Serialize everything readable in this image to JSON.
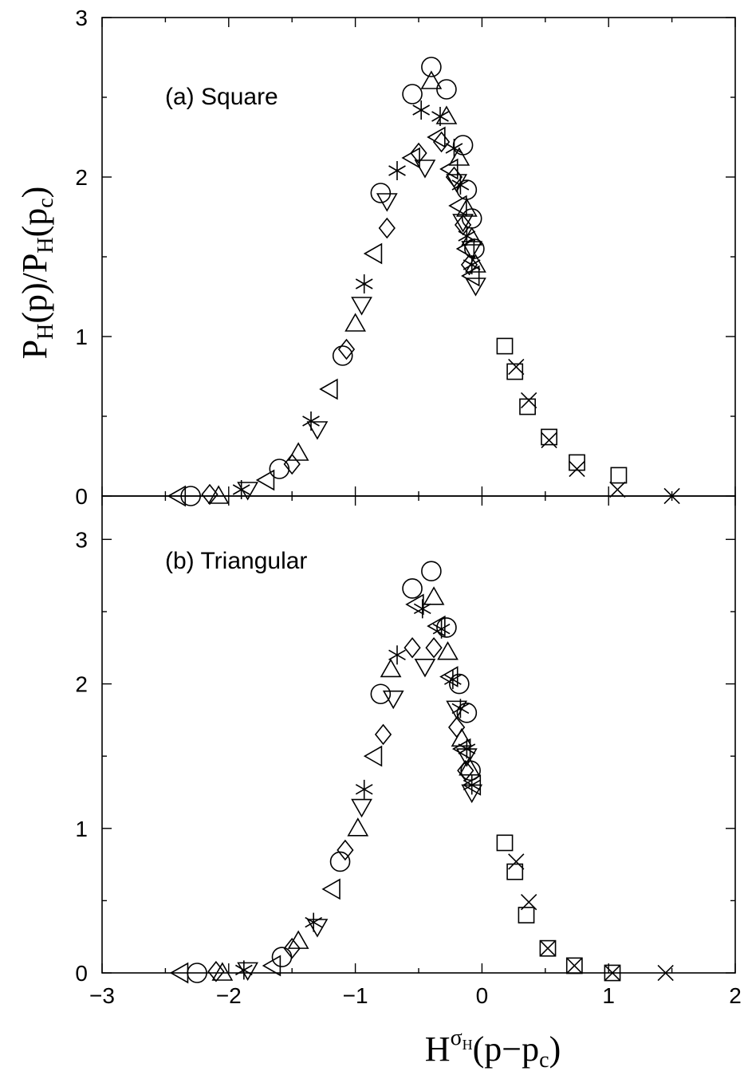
{
  "chart_data": [
    {
      "type": "scatter",
      "panel_label": "(a) Square",
      "xlim": [
        -3,
        2
      ],
      "ylim": [
        0,
        3
      ],
      "y_ticks": [
        0,
        1,
        2,
        3
      ],
      "y_tick_labels": [
        "0",
        "1",
        "2",
        "3"
      ],
      "grid": false,
      "series": [
        {
          "marker": "circle",
          "points": [
            [
              -2.3,
              0.0
            ],
            [
              -1.6,
              0.17
            ],
            [
              -1.1,
              0.88
            ],
            [
              -0.8,
              1.9
            ],
            [
              -0.55,
              2.52
            ],
            [
              -0.4,
              2.69
            ],
            [
              -0.28,
              2.55
            ],
            [
              -0.15,
              2.2
            ],
            [
              -0.12,
              1.92
            ],
            [
              -0.08,
              1.74
            ],
            [
              -0.06,
              1.55
            ]
          ]
        },
        {
          "marker": "triangle-up",
          "points": [
            [
              -2.08,
              0.0
            ],
            [
              -1.45,
              0.27
            ],
            [
              -1.0,
              1.08
            ],
            [
              -0.4,
              2.6
            ],
            [
              -0.28,
              2.38
            ],
            [
              -0.18,
              2.12
            ],
            [
              -0.12,
              1.8
            ],
            [
              -0.08,
              1.62
            ],
            [
              -0.05,
              1.45
            ]
          ]
        },
        {
          "marker": "triangle-down",
          "points": [
            [
              -1.85,
              0.04
            ],
            [
              -1.3,
              0.42
            ],
            [
              -0.95,
              1.2
            ],
            [
              -0.75,
              1.85
            ],
            [
              -0.45,
              2.06
            ],
            [
              -0.2,
              1.97
            ],
            [
              -0.15,
              1.72
            ],
            [
              -0.08,
              1.55
            ],
            [
              -0.05,
              1.32
            ]
          ]
        },
        {
          "marker": "triangle-left",
          "points": [
            [
              -2.4,
              0.0
            ],
            [
              -1.7,
              0.1
            ],
            [
              -1.2,
              0.67
            ],
            [
              -0.85,
              1.52
            ],
            [
              -0.55,
              2.12
            ],
            [
              -0.35,
              2.25
            ],
            [
              -0.25,
              2.05
            ],
            [
              -0.18,
              1.82
            ],
            [
              -0.12,
              1.55
            ],
            [
              -0.08,
              1.38
            ]
          ]
        },
        {
          "marker": "diamond",
          "points": [
            [
              -2.15,
              0.01
            ],
            [
              -1.5,
              0.2
            ],
            [
              -1.07,
              0.92
            ],
            [
              -0.75,
              1.68
            ],
            [
              -0.5,
              2.15
            ],
            [
              -0.32,
              2.22
            ],
            [
              -0.22,
              2.0
            ],
            [
              -0.15,
              1.7
            ],
            [
              -0.1,
              1.45
            ]
          ]
        },
        {
          "marker": "asterisk",
          "points": [
            [
              -1.9,
              0.04
            ],
            [
              -1.35,
              0.47
            ],
            [
              -0.93,
              1.33
            ],
            [
              -0.67,
              2.04
            ],
            [
              -0.48,
              2.42
            ],
            [
              -0.33,
              2.38
            ],
            [
              -0.22,
              2.18
            ],
            [
              -0.17,
              1.95
            ],
            [
              -0.12,
              1.63
            ],
            [
              -0.08,
              1.45
            ]
          ]
        },
        {
          "marker": "square",
          "points": [
            [
              0.18,
              0.94
            ],
            [
              0.26,
              0.78
            ],
            [
              0.36,
              0.56
            ],
            [
              0.53,
              0.37
            ],
            [
              0.75,
              0.21
            ],
            [
              1.08,
              0.13
            ]
          ]
        },
        {
          "marker": "cross",
          "points": [
            [
              0.27,
              0.81
            ],
            [
              0.37,
              0.6
            ],
            [
              0.53,
              0.35
            ],
            [
              0.75,
              0.17
            ],
            [
              1.07,
              0.04
            ],
            [
              1.5,
              0.0
            ]
          ]
        }
      ]
    },
    {
      "type": "scatter",
      "panel_label": "(b) Triangular",
      "xlim": [
        -3,
        2
      ],
      "ylim": [
        0,
        3.3
      ],
      "x_ticks": [
        -3,
        -2,
        -1,
        0,
        1,
        2
      ],
      "x_tick_labels": [
        "−3",
        "−2",
        "−1",
        "0",
        "1",
        "2"
      ],
      "y_ticks": [
        0,
        1,
        2,
        3
      ],
      "y_tick_labels": [
        "0",
        "1",
        "2",
        "3"
      ],
      "grid": false,
      "series": [
        {
          "marker": "circle",
          "points": [
            [
              -2.25,
              0.0
            ],
            [
              -1.58,
              0.11
            ],
            [
              -1.12,
              0.77
            ],
            [
              -0.8,
              1.93
            ],
            [
              -0.55,
              2.66
            ],
            [
              -0.4,
              2.78
            ],
            [
              -0.28,
              2.39
            ],
            [
              -0.18,
              2.0
            ],
            [
              -0.12,
              1.8
            ],
            [
              -0.09,
              1.4
            ]
          ]
        },
        {
          "marker": "triangle-up",
          "points": [
            [
              -2.05,
              0.0
            ],
            [
              -1.45,
              0.22
            ],
            [
              -0.98,
              1.0
            ],
            [
              -0.72,
              2.1
            ],
            [
              -0.38,
              2.6
            ],
            [
              -0.27,
              2.22
            ],
            [
              -0.16,
              1.62
            ],
            [
              -0.1,
              1.42
            ]
          ]
        },
        {
          "marker": "triangle-down",
          "points": [
            [
              -1.85,
              0.02
            ],
            [
              -1.3,
              0.32
            ],
            [
              -0.95,
              1.15
            ],
            [
              -0.7,
              1.9
            ],
            [
              -0.45,
              2.12
            ],
            [
              -0.2,
              1.83
            ],
            [
              -0.12,
              1.5
            ],
            [
              -0.08,
              1.25
            ]
          ]
        },
        {
          "marker": "triangle-left",
          "points": [
            [
              -2.38,
              0.0
            ],
            [
              -1.65,
              0.05
            ],
            [
              -1.18,
              0.58
            ],
            [
              -0.85,
              1.5
            ],
            [
              -0.52,
              2.55
            ],
            [
              -0.35,
              2.4
            ],
            [
              -0.25,
              2.05
            ],
            [
              -0.15,
              1.55
            ],
            [
              -0.07,
              1.3
            ]
          ]
        },
        {
          "marker": "diamond",
          "points": [
            [
              -2.1,
              0.01
            ],
            [
              -1.5,
              0.17
            ],
            [
              -1.08,
              0.85
            ],
            [
              -0.78,
              1.65
            ],
            [
              -0.55,
              2.25
            ],
            [
              -0.38,
              2.25
            ],
            [
              -0.2,
              1.7
            ],
            [
              -0.13,
              1.4
            ]
          ]
        },
        {
          "marker": "asterisk",
          "points": [
            [
              -1.88,
              0.02
            ],
            [
              -1.33,
              0.35
            ],
            [
              -0.93,
              1.27
            ],
            [
              -0.67,
              2.2
            ],
            [
              -0.47,
              2.52
            ],
            [
              -0.32,
              2.38
            ],
            [
              -0.23,
              2.03
            ],
            [
              -0.17,
              1.83
            ],
            [
              -0.12,
              1.55
            ],
            [
              -0.08,
              1.3
            ]
          ]
        },
        {
          "marker": "square",
          "points": [
            [
              0.18,
              0.9
            ],
            [
              0.26,
              0.7
            ],
            [
              0.35,
              0.4
            ],
            [
              0.52,
              0.17
            ],
            [
              0.73,
              0.05
            ],
            [
              1.03,
              0.0
            ]
          ]
        },
        {
          "marker": "cross",
          "points": [
            [
              0.27,
              0.77
            ],
            [
              0.37,
              0.49
            ],
            [
              0.52,
              0.17
            ],
            [
              0.73,
              0.05
            ],
            [
              1.03,
              0.0
            ],
            [
              1.45,
              0.0
            ]
          ]
        }
      ]
    }
  ],
  "axes": {
    "y_label_main": "P",
    "y_label_sub1": "H",
    "y_label_mid": "(p)/P",
    "y_label_sub2": "H",
    "y_label_mid2": "(p",
    "y_label_sub3": "c",
    "y_label_end": ")",
    "x_label_main": "H",
    "x_label_sup": "σ",
    "x_label_supsub": "H",
    "x_label_mid": "(p−p",
    "x_label_sub": "c",
    "x_label_end": ")"
  }
}
